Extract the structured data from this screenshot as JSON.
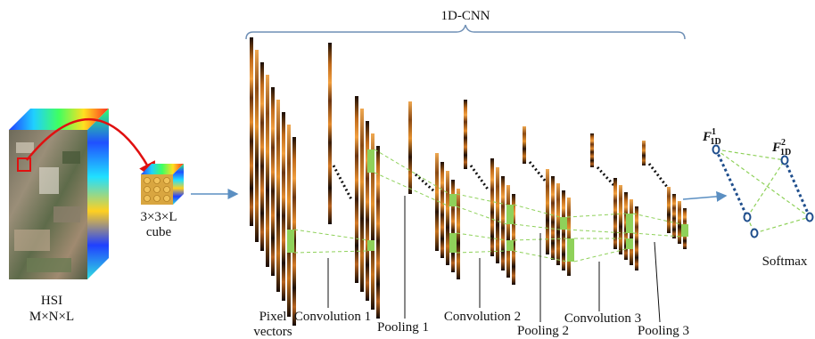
{
  "header": {
    "bracket_label": "1D-CNN"
  },
  "input": {
    "hsi_label_line1": "HSI",
    "hsi_label_line2": "M×N×L",
    "cube_label_line1": "3×3×L",
    "cube_label_line2": "cube"
  },
  "stages": {
    "pixel_vectors_line1": "Pixel",
    "pixel_vectors_line2": "vectors",
    "conv1": "Convolution 1",
    "pool1": "Pooling 1",
    "conv2": "Convolution 2",
    "pool2": "Pooling 2",
    "conv3": "Convolution 3",
    "pool3": "Pooling 3"
  },
  "classifier": {
    "f1_base": "F",
    "f1_sup": "1",
    "f1_sub": "1D",
    "f2_base": "F",
    "f2_sup": "2",
    "f2_sub": "1D",
    "softmax": "Softmax"
  },
  "colors": {
    "bracket": "#6e8fb5",
    "arrow_blue": "#5b8fc2",
    "red_arrow": "#e01010",
    "highlight_green": "#8fd15a",
    "dashed_green": "#8fd15a",
    "node_blue": "#1f4e8c",
    "strip_orange": "#e08a2a",
    "strip_dark": "#2a1606"
  }
}
